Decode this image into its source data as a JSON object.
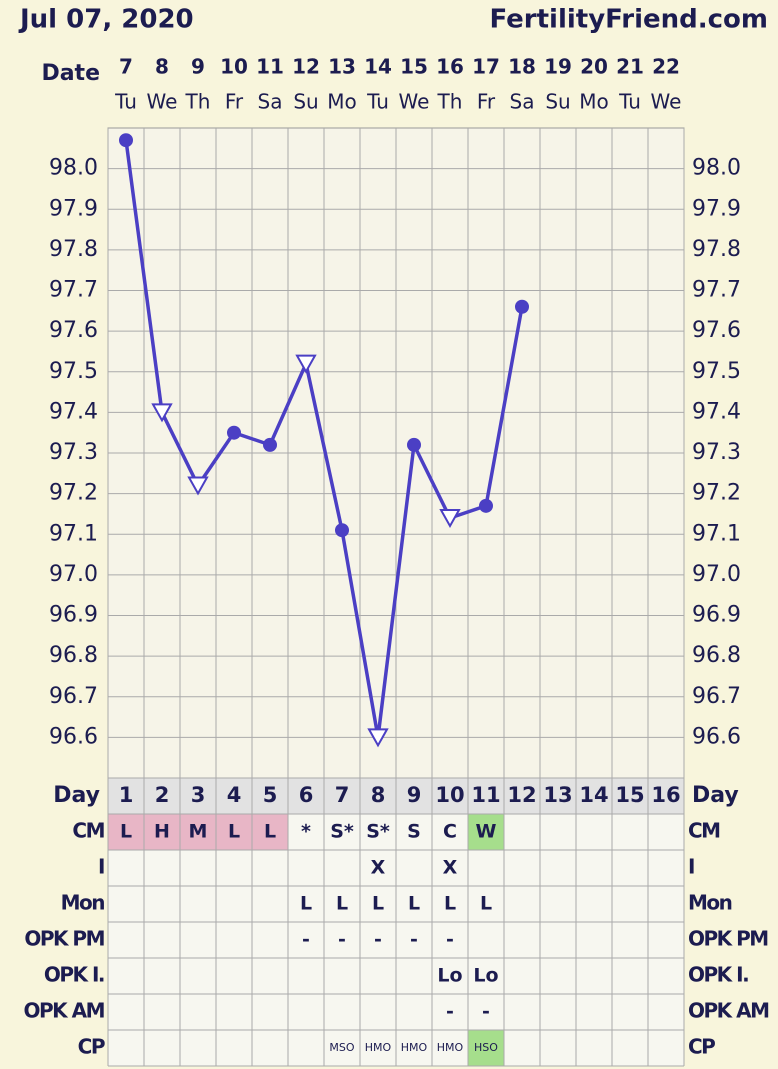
{
  "header": {
    "date": "Jul 07, 2020",
    "brand": "FertilityFriend.com",
    "date_label": "Date"
  },
  "chart_data": {
    "type": "line",
    "categories": [
      "7",
      "8",
      "9",
      "10",
      "11",
      "12",
      "13",
      "14",
      "15",
      "16",
      "17",
      "18",
      "19",
      "20",
      "21",
      "22"
    ],
    "weekdays": [
      "Tu",
      "We",
      "Th",
      "Fr",
      "Sa",
      "Su",
      "Mo",
      "Tu",
      "We",
      "Th",
      "Fr",
      "Sa",
      "Su",
      "Mo",
      "Tu",
      "We"
    ],
    "series": [
      {
        "color": "#4b3fc4",
        "values": [
          98.07,
          97.4,
          97.22,
          97.35,
          97.32,
          97.52,
          97.11,
          96.6,
          97.32,
          97.14,
          97.17,
          97.66,
          null,
          null,
          null,
          null
        ],
        "markers": [
          "circle",
          "triangle",
          "triangle",
          "circle",
          "circle",
          "triangle",
          "circle",
          "triangle",
          "circle",
          "triangle",
          "circle",
          "circle",
          null,
          null,
          null,
          null
        ]
      }
    ],
    "ylim": [
      96.5,
      98.1
    ],
    "yticks": [
      96.6,
      96.7,
      96.8,
      96.9,
      {
        "value": 97.0,
        "label": "97.0"
      },
      97.1,
      97.2,
      97.3,
      97.4,
      97.5,
      97.6,
      97.7,
      97.8,
      97.9,
      {
        "value": 98.0,
        "label": "98.0"
      }
    ],
    "grid": true
  },
  "table": {
    "day_label": "Day",
    "days": [
      1,
      2,
      3,
      4,
      5,
      6,
      7,
      8,
      9,
      10,
      11,
      12,
      13,
      14,
      15,
      16
    ],
    "rows": [
      {
        "label": "CM",
        "cells": [
          "L",
          "H",
          "M",
          "L",
          "L",
          "*",
          "S*",
          "S*",
          "S",
          "C",
          "W",
          null,
          null,
          null,
          null,
          null
        ],
        "colors": [
          "#e8b6c6",
          "#e8b6c6",
          "#e8b6c6",
          "#e8b6c6",
          "#e8b6c6",
          null,
          null,
          null,
          null,
          null,
          "#a6de8c",
          null,
          null,
          null,
          null,
          null
        ]
      },
      {
        "label": "I",
        "cells": [
          null,
          null,
          null,
          null,
          null,
          null,
          null,
          "X",
          null,
          "X",
          null,
          null,
          null,
          null,
          null,
          null
        ]
      },
      {
        "label": "Mon",
        "cells": [
          null,
          null,
          null,
          null,
          null,
          "L",
          "L",
          "L",
          "L",
          "L",
          "L",
          null,
          null,
          null,
          null,
          null
        ]
      },
      {
        "label": "OPK PM",
        "cells": [
          null,
          null,
          null,
          null,
          null,
          "-",
          "-",
          "-",
          "-",
          "-",
          null,
          null,
          null,
          null,
          null,
          null
        ]
      },
      {
        "label": "OPK I.",
        "cells": [
          null,
          null,
          null,
          null,
          null,
          null,
          null,
          null,
          null,
          "Lo",
          "Lo",
          null,
          null,
          null,
          null,
          null
        ]
      },
      {
        "label": "OPK AM",
        "cells": [
          null,
          null,
          null,
          null,
          null,
          null,
          null,
          null,
          null,
          "-",
          "-",
          null,
          null,
          null,
          null,
          null
        ]
      },
      {
        "label": "CP",
        "cells": [
          null,
          null,
          null,
          null,
          null,
          null,
          "MSO",
          "HMO",
          "HMO",
          "HMO",
          "HSO",
          null,
          null,
          null,
          null,
          null
        ],
        "colors": [
          null,
          null,
          null,
          null,
          null,
          null,
          null,
          null,
          null,
          null,
          "#a6de8c",
          null,
          null,
          null,
          null,
          null
        ]
      }
    ]
  }
}
